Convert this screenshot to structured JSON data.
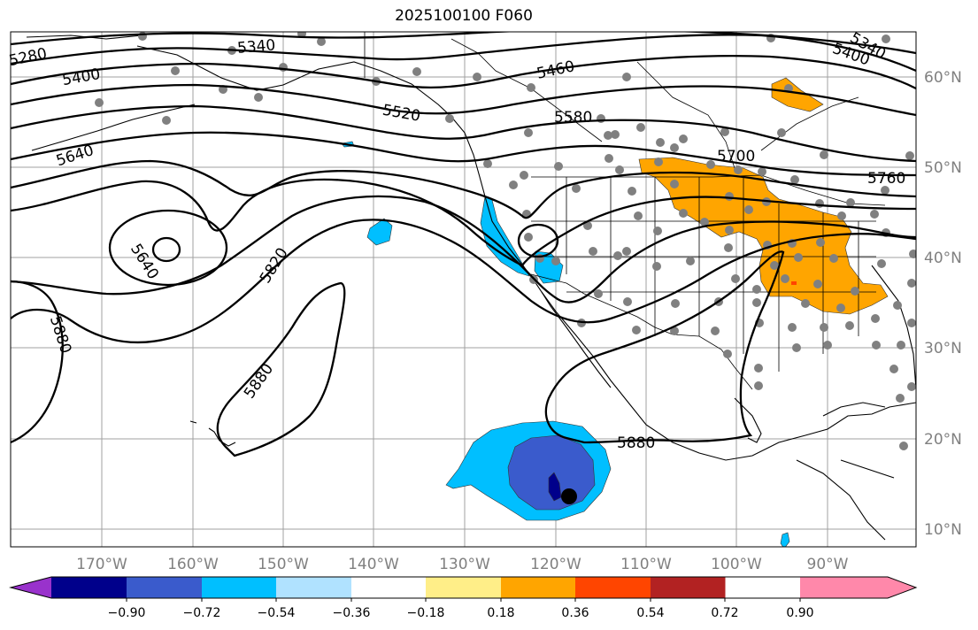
{
  "title": "2025100100 F060",
  "lon_labels": [
    "170°W",
    "160°W",
    "150°W",
    "140°W",
    "130°W",
    "120°W",
    "110°W",
    "100°W",
    "90°W"
  ],
  "lat_labels": [
    "60°N",
    "50°N",
    "40°N",
    "30°N",
    "20°N",
    "10°N"
  ],
  "contour_labels": [
    "5280",
    "5340",
    "5340",
    "5400",
    "5400",
    "5460",
    "5520",
    "5580",
    "5640",
    "5640",
    "5700",
    "5760",
    "5820",
    "5880",
    "5880",
    "5880"
  ],
  "colorbar": {
    "tick_labels": [
      "−0.90",
      "−0.72",
      "−0.54",
      "−0.36",
      "−0.18",
      "0.18",
      "0.36",
      "0.54",
      "0.72",
      "0.90"
    ],
    "colors": [
      "#9932cc",
      "#00008b",
      "#3a5bcc",
      "#00bfff",
      "#b0e2ff",
      "#ffffff",
      "#ffee88",
      "#ffa500",
      "#ff4500",
      "#b22222",
      "#ff88aa"
    ]
  },
  "colors": {
    "land_positive": "#ffa500",
    "ocean_negative_light": "#00bfff",
    "ocean_negative_mid": "#3a5bcc",
    "ocean_negative_dark": "#00008b",
    "station_dots": "#808080",
    "grid": "#a0a0a0"
  }
}
